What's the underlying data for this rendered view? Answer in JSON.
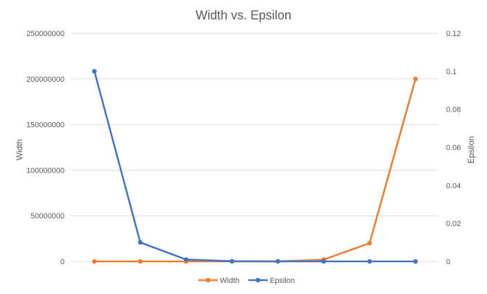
{
  "chart_data": {
    "type": "line",
    "title": "Width vs. Epsilon",
    "ylabel": "Width",
    "y2label": "Epsilon",
    "x": [
      1,
      2,
      3,
      4,
      5,
      6,
      7,
      8
    ],
    "series": [
      {
        "name": "Width",
        "axis": "left",
        "color": "#ED7D31",
        "values": [
          2,
          20,
          200,
          2000,
          20000,
          2000000,
          20000000,
          200000000
        ]
      },
      {
        "name": "Epsilon",
        "axis": "right",
        "color": "#4472C4",
        "values": [
          0.1,
          0.01,
          0.001,
          0.0001,
          1e-05,
          1e-06,
          1e-07,
          1e-08
        ]
      }
    ],
    "ylim": [
      0,
      250000000
    ],
    "yticks": [
      "0",
      "50000000",
      "100000000",
      "150000000",
      "200000000",
      "250000000"
    ],
    "y2lim": [
      0,
      0.12
    ],
    "y2ticks": [
      "0",
      "0.02",
      "0.04",
      "0.06",
      "0.08",
      "0.1",
      "0.12"
    ],
    "grid": true,
    "legend": "bottom"
  }
}
